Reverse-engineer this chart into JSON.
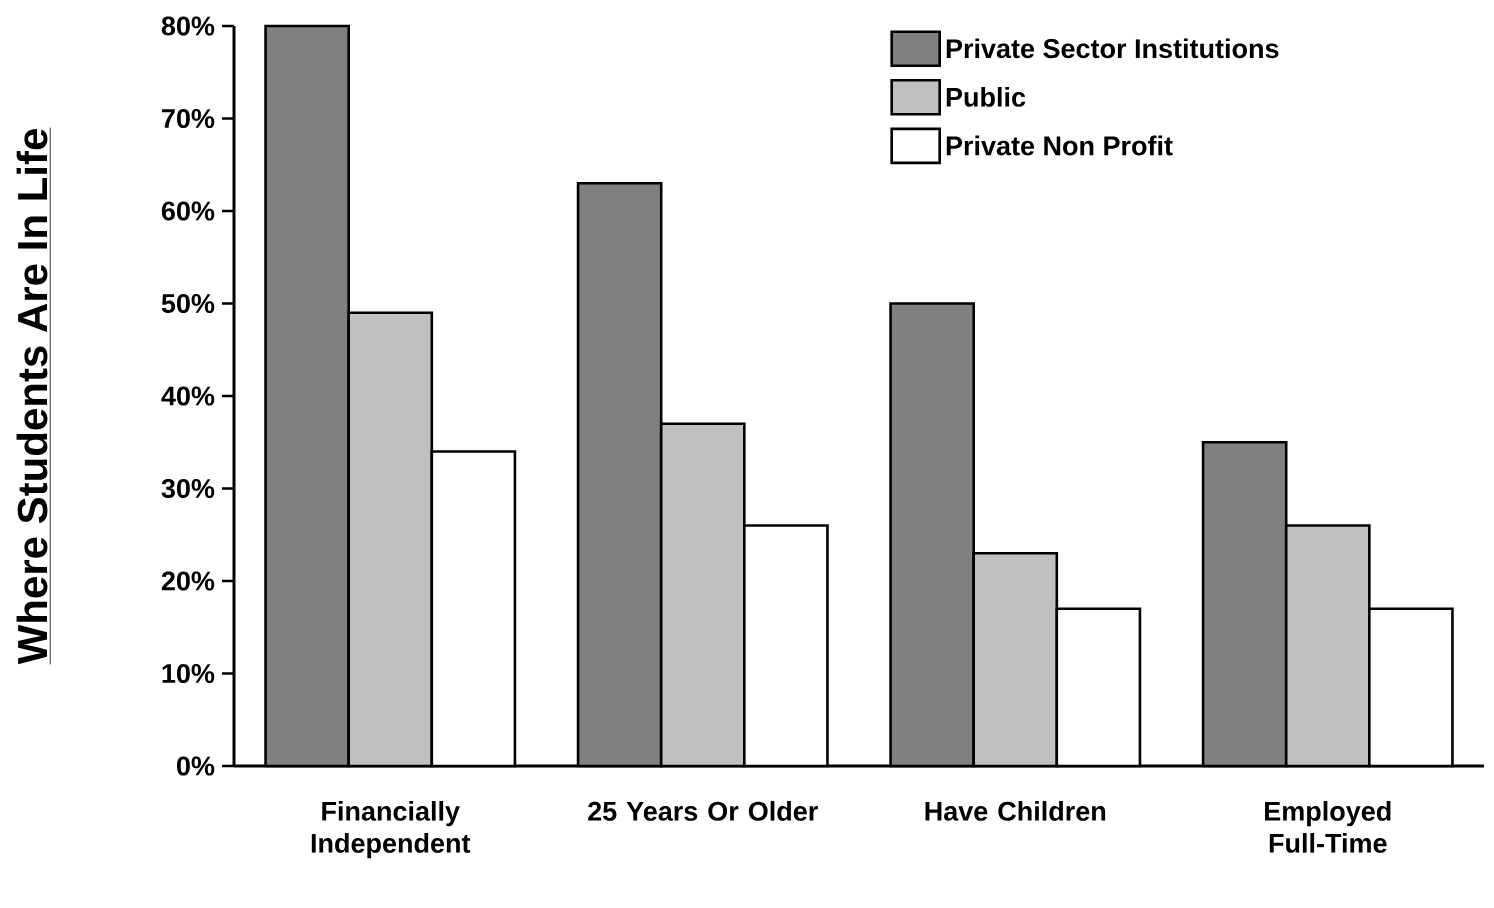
{
  "chart_data": {
    "type": "bar",
    "ylabel": "Where Students  Are In Life",
    "categories": [
      "Financially Independent",
      "25 Years Or Older",
      "Have Children",
      "Employed Full-Time"
    ],
    "series": [
      {
        "name": "Private Sector Institutions",
        "color": "#808080",
        "values": [
          80,
          63,
          50,
          35
        ]
      },
      {
        "name": "Public",
        "color": "#c0c0c0",
        "values": [
          49,
          37,
          23,
          26
        ]
      },
      {
        "name": "Private Non Profit",
        "color": "#ffffff",
        "values": [
          34,
          26,
          17,
          17
        ]
      }
    ],
    "ylim": [
      0,
      80
    ],
    "yticks": [
      {
        "value": 0,
        "label": "0%"
      },
      {
        "value": 10,
        "label": "10%"
      },
      {
        "value": 20,
        "label": "20%"
      },
      {
        "value": 30,
        "label": "30%"
      },
      {
        "value": 40,
        "label": "40%"
      },
      {
        "value": 50,
        "label": "50%"
      },
      {
        "value": 60,
        "label": "60%"
      },
      {
        "value": 70,
        "label": "70%"
      },
      {
        "value": 80,
        "label": "80%"
      }
    ],
    "legend": "top right",
    "grid": false
  }
}
